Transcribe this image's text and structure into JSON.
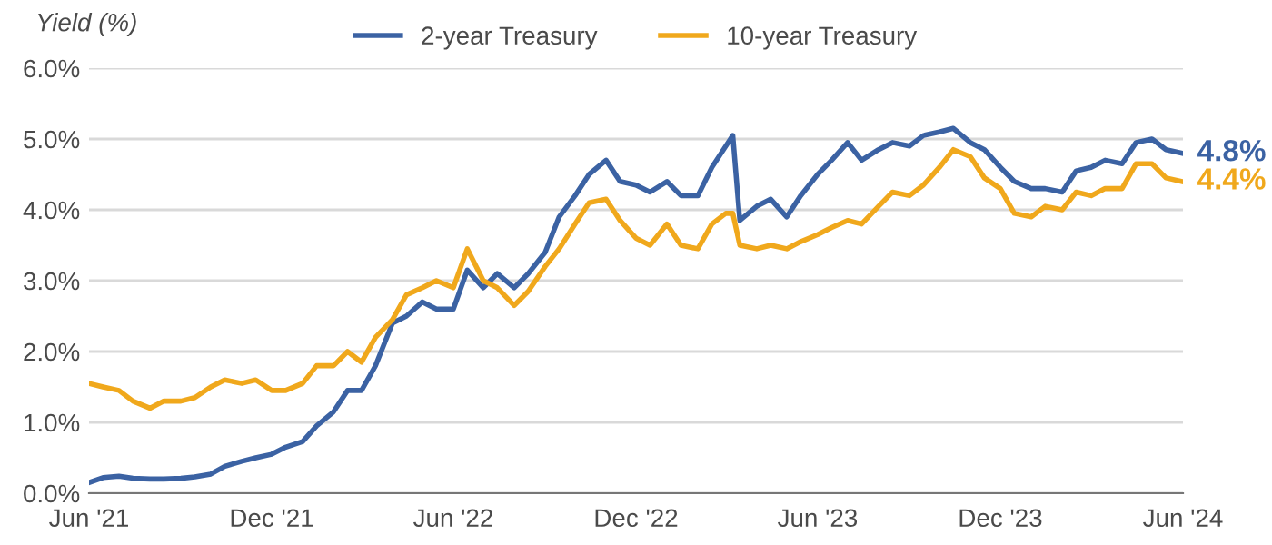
{
  "chart_data": {
    "type": "line",
    "ylabel": "Yield (%)",
    "x": [
      "2021-06-01",
      "2021-06-15",
      "2021-07-01",
      "2021-07-15",
      "2021-08-01",
      "2021-08-15",
      "2021-09-01",
      "2021-09-15",
      "2021-10-01",
      "2021-10-15",
      "2021-11-01",
      "2021-11-15",
      "2021-12-01",
      "2021-12-15",
      "2022-01-01",
      "2022-01-15",
      "2022-02-01",
      "2022-02-15",
      "2022-03-01",
      "2022-03-15",
      "2022-04-01",
      "2022-04-15",
      "2022-05-01",
      "2022-05-15",
      "2022-06-01",
      "2022-06-15",
      "2022-07-01",
      "2022-07-15",
      "2022-08-01",
      "2022-08-15",
      "2022-09-01",
      "2022-09-15",
      "2022-10-01",
      "2022-10-15",
      "2022-11-01",
      "2022-11-15",
      "2022-12-01",
      "2022-12-15",
      "2023-01-01",
      "2023-01-15",
      "2023-02-01",
      "2023-02-15",
      "2023-03-01",
      "2023-03-08",
      "2023-03-15",
      "2023-04-01",
      "2023-04-15",
      "2023-05-01",
      "2023-05-15",
      "2023-06-01",
      "2023-06-15",
      "2023-07-01",
      "2023-07-15",
      "2023-08-01",
      "2023-08-15",
      "2023-09-01",
      "2023-09-15",
      "2023-10-01",
      "2023-10-15",
      "2023-11-01",
      "2023-11-15",
      "2023-12-01",
      "2023-12-15",
      "2024-01-01",
      "2024-01-15",
      "2024-02-01",
      "2024-02-15",
      "2024-03-01",
      "2024-03-15",
      "2024-04-01",
      "2024-04-15",
      "2024-05-01",
      "2024-05-15",
      "2024-05-31"
    ],
    "series": [
      {
        "name": "2-year Treasury",
        "color": "#3b62a3",
        "values": [
          0.15,
          0.22,
          0.24,
          0.21,
          0.2,
          0.2,
          0.21,
          0.23,
          0.27,
          0.38,
          0.45,
          0.5,
          0.55,
          0.65,
          0.73,
          0.95,
          1.15,
          1.45,
          1.45,
          1.8,
          2.4,
          2.5,
          2.7,
          2.6,
          2.6,
          3.15,
          2.9,
          3.1,
          2.9,
          3.1,
          3.4,
          3.9,
          4.2,
          4.5,
          4.7,
          4.4,
          4.35,
          4.25,
          4.4,
          4.2,
          4.2,
          4.6,
          4.9,
          5.05,
          3.85,
          4.05,
          4.15,
          3.9,
          4.2,
          4.5,
          4.7,
          4.95,
          4.7,
          4.85,
          4.95,
          4.9,
          5.05,
          5.1,
          5.15,
          4.95,
          4.85,
          4.6,
          4.4,
          4.3,
          4.3,
          4.25,
          4.55,
          4.6,
          4.7,
          4.65,
          4.95,
          5.0,
          4.85,
          4.8
        ]
      },
      {
        "name": "10-year Treasury",
        "color": "#f0a81c",
        "values": [
          1.55,
          1.5,
          1.45,
          1.3,
          1.2,
          1.3,
          1.3,
          1.35,
          1.5,
          1.6,
          1.55,
          1.6,
          1.45,
          1.45,
          1.55,
          1.8,
          1.8,
          2.0,
          1.85,
          2.2,
          2.45,
          2.8,
          2.9,
          3.0,
          2.9,
          3.45,
          3.0,
          2.9,
          2.65,
          2.85,
          3.2,
          3.45,
          3.8,
          4.1,
          4.15,
          3.85,
          3.6,
          3.5,
          3.8,
          3.5,
          3.45,
          3.8,
          3.95,
          3.95,
          3.5,
          3.45,
          3.5,
          3.45,
          3.55,
          3.65,
          3.75,
          3.85,
          3.8,
          4.05,
          4.25,
          4.2,
          4.35,
          4.6,
          4.85,
          4.75,
          4.45,
          4.3,
          3.95,
          3.9,
          4.05,
          4.0,
          4.25,
          4.2,
          4.3,
          4.3,
          4.65,
          4.65,
          4.45,
          4.4
        ]
      }
    ],
    "annotations": [
      {
        "text": "4.8%",
        "x": "2024-05-31",
        "y": 4.8
      },
      {
        "text": "4.4%",
        "x": "2024-05-31",
        "y": 4.4
      }
    ],
    "xlim": [
      "2021-06-01",
      "2024-06-01"
    ],
    "xticks": [
      {
        "value": "2021-06-01",
        "label": "Jun '21"
      },
      {
        "value": "2021-12-01",
        "label": "Dec '21"
      },
      {
        "value": "2022-06-01",
        "label": "Jun '22"
      },
      {
        "value": "2022-12-01",
        "label": "Dec '22"
      },
      {
        "value": "2023-06-01",
        "label": "Jun '23"
      },
      {
        "value": "2023-12-01",
        "label": "Dec '23"
      },
      {
        "value": "2024-06-01",
        "label": "Jun '24"
      }
    ],
    "ylim": [
      0,
      6
    ],
    "yticks": [
      {
        "value": 0,
        "label": "0.0%"
      },
      {
        "value": 1,
        "label": "1.0%"
      },
      {
        "value": 2,
        "label": "2.0%"
      },
      {
        "value": 3,
        "label": "3.0%"
      },
      {
        "value": 4,
        "label": "4.0%"
      },
      {
        "value": 5,
        "label": "5.0%"
      },
      {
        "value": 6,
        "label": "6.0%"
      }
    ],
    "grid": "y",
    "legend": "top",
    "marker": "none",
    "line_style": "solid"
  }
}
